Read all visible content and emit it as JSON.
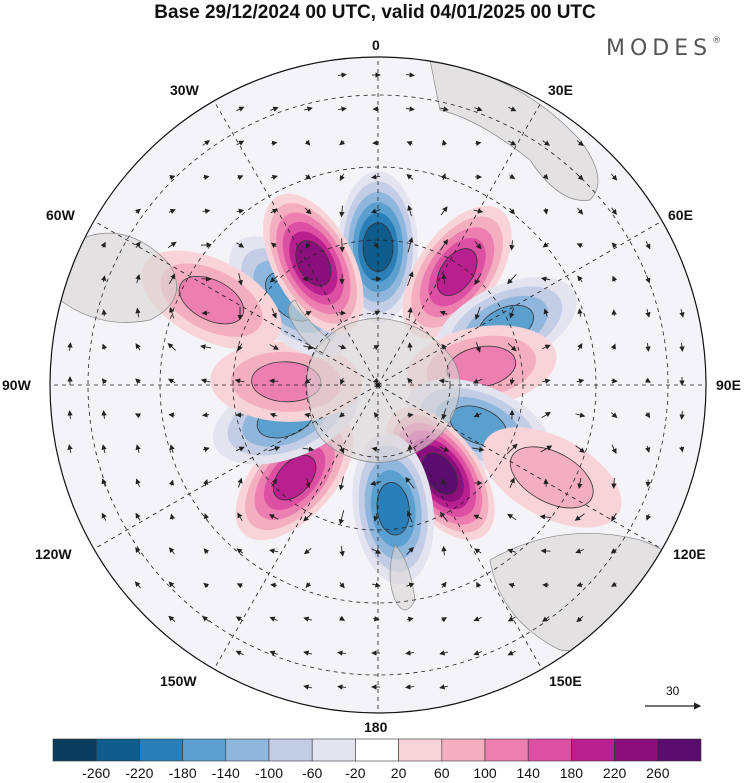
{
  "title": "Base 29/12/2024 00 UTC, valid 04/01/2025 00 UTC",
  "brand": "MODES",
  "brand_mark": "®",
  "longitude_labels": {
    "n0": "0",
    "e30": "30E",
    "e60": "60E",
    "e90": "90E",
    "e120": "120E",
    "e150": "150E",
    "s180": "180",
    "w150": "150W",
    "w120": "120W",
    "w90": "90W",
    "w60": "60W",
    "w30": "30W"
  },
  "vector_reference": {
    "label": "30",
    "icon": "arrow-right-icon"
  },
  "colorbar": {
    "labels": [
      "-260",
      "-220",
      "-180",
      "-140",
      "-100",
      "-60",
      "-20",
      "20",
      "60",
      "100",
      "140",
      "180",
      "220",
      "260"
    ],
    "colors": [
      "#0a3d5e",
      "#0e5c8c",
      "#2a7fb8",
      "#5a9fce",
      "#8fb6dc",
      "#c3cde6",
      "#e4e4f0",
      "#ffffff",
      "#f8d4d8",
      "#f3aec0",
      "#ec7fb0",
      "#dc4fa3",
      "#b81f8f",
      "#8a0f7d",
      "#5a0d6e"
    ]
  },
  "anomalies": [
    {
      "lon": 0,
      "lat": -48,
      "v": -230
    },
    {
      "lon": 35,
      "lat": -48,
      "v": 190
    },
    {
      "lon": 65,
      "lat": -47,
      "v": -130
    },
    {
      "lon": 80,
      "lat": -58,
      "v": 110
    },
    {
      "lon": 112,
      "lat": -57,
      "v": -150
    },
    {
      "lon": 145,
      "lat": -57,
      "v": 270
    },
    {
      "lon": 173,
      "lat": -52,
      "v": -200
    },
    {
      "lon": -138,
      "lat": -52,
      "v": 170
    },
    {
      "lon": -110,
      "lat": -60,
      "v": -150
    },
    {
      "lon": -88,
      "lat": -62,
      "v": 110
    },
    {
      "lon": -45,
      "lat": -52,
      "v": -150
    },
    {
      "lon": -28,
      "lat": -48,
      "v": 210
    },
    {
      "lon": -63,
      "lat": -33,
      "v": 90
    },
    {
      "lon": 118,
      "lat": -30,
      "v": 60
    }
  ]
}
